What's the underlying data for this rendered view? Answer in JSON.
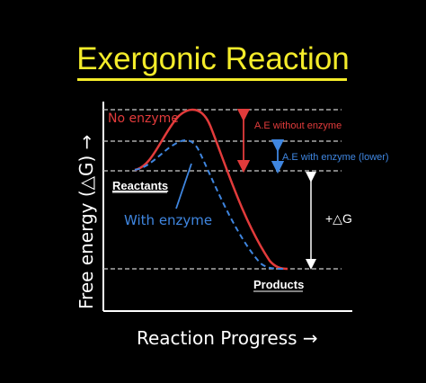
{
  "title": "Exergonic Reaction",
  "y_axis_label": "Free energy (△G) →",
  "x_axis_label": "Reaction Progress →",
  "labels": {
    "no_enzyme": "No enzyme",
    "with_enzyme": "With enzyme",
    "reactants": "Reactants",
    "products": "Products",
    "ae_without": "A.E without enzyme",
    "ae_with": "A.E with enzyme (lower)",
    "delta_g": "+△G"
  },
  "colors": {
    "background": "#000000",
    "title": "#f4ec2a",
    "no_enzyme_curve": "#e23b3b",
    "with_enzyme_curve": "#3f86e0",
    "axis": "#ffffff",
    "guide_lines": "#aaaaaa"
  }
}
